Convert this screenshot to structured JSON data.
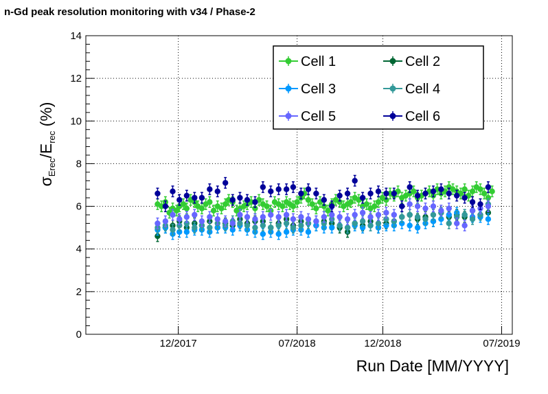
{
  "chart_data": {
    "type": "scatter",
    "title": "n-Gd peak resolution monitoring with v34 / Phase-2",
    "xlabel": "Run Date [MM/YYYY]",
    "ylabel": {
      "sym": "σ",
      "sub1": "Erec",
      "mid": "/E",
      "sub2": "rec",
      "tail": " (%)"
    },
    "x_range": [
      "2017-06-19",
      "2019-07-20"
    ],
    "ylim": [
      0,
      14
    ],
    "y_ticks": [
      0,
      2,
      4,
      6,
      8,
      10,
      12,
      14
    ],
    "x_ticks": [
      {
        "date": "2017-12-01",
        "label": "12/2017"
      },
      {
        "date": "2018-07-01",
        "label": "07/2018"
      },
      {
        "date": "2018-12-01",
        "label": "12/2018"
      },
      {
        "date": "2019-07-01",
        "label": "07/2019"
      }
    ],
    "grid": true,
    "error_bar": 0.25,
    "legend_position": "top-right",
    "series": [
      {
        "name": "Cell 1",
        "color": "#33cc33",
        "x": [
          "2017-10-25",
          "2017-11-01",
          "2017-11-08",
          "2017-11-15",
          "2017-11-21",
          "2017-11-28",
          "2017-12-03",
          "2017-12-10",
          "2017-12-16",
          "2017-12-23",
          "2017-12-30",
          "2018-01-05",
          "2018-01-12",
          "2018-01-19",
          "2018-01-26",
          "2018-02-02",
          "2018-02-09",
          "2018-02-16",
          "2018-02-23",
          "2018-03-01",
          "2018-03-08",
          "2018-03-15",
          "2018-03-21",
          "2018-03-28",
          "2018-04-03",
          "2018-04-10",
          "2018-04-17",
          "2018-04-24",
          "2018-05-01",
          "2018-05-08",
          "2018-05-15",
          "2018-05-22",
          "2018-05-29",
          "2018-06-05",
          "2018-06-12",
          "2018-06-18",
          "2018-06-24",
          "2018-07-01",
          "2018-07-08",
          "2018-07-14",
          "2018-07-21",
          "2018-07-28",
          "2018-08-04",
          "2018-08-11",
          "2018-08-18",
          "2018-08-25",
          "2018-09-01",
          "2018-09-08",
          "2018-09-15",
          "2018-09-22",
          "2018-09-29",
          "2018-10-05",
          "2018-10-12",
          "2018-10-19",
          "2018-10-26",
          "2018-11-02",
          "2018-11-09",
          "2018-11-16",
          "2018-11-23",
          "2018-11-30",
          "2018-12-07",
          "2018-12-14",
          "2018-12-21",
          "2018-12-28",
          "2019-01-04",
          "2019-01-11",
          "2019-01-18",
          "2019-01-25",
          "2019-02-01",
          "2019-02-08",
          "2019-02-15",
          "2019-02-22",
          "2019-03-01",
          "2019-03-08",
          "2019-03-15",
          "2019-03-22",
          "2019-03-29",
          "2019-04-05",
          "2019-04-12",
          "2019-04-19",
          "2019-04-26",
          "2019-05-03",
          "2019-05-10",
          "2019-05-17",
          "2019-05-24",
          "2019-05-31",
          "2019-06-07",
          "2019-06-14"
        ],
        "y": [
          6.1,
          6.0,
          6.2,
          5.7,
          5.9,
          5.8,
          6.0,
          6.1,
          5.9,
          6.3,
          6.2,
          6.0,
          5.9,
          6.1,
          6.2,
          5.8,
          6.0,
          5.9,
          6.1,
          6.3,
          6.2,
          5.8,
          5.9,
          6.0,
          6.1,
          6.2,
          5.9,
          6.3,
          6.1,
          6.0,
          5.8,
          6.2,
          6.1,
          6.0,
          6.2,
          6.1,
          6.0,
          6.2,
          6.4,
          6.6,
          6.3,
          6.1,
          5.9,
          6.2,
          6.0,
          5.8,
          6.1,
          6.3,
          6.2,
          6.0,
          6.1,
          6.2,
          6.4,
          6.3,
          6.0,
          6.1,
          5.9,
          6.0,
          6.2,
          6.4,
          6.3,
          6.6,
          6.5,
          6.7,
          6.4,
          6.5,
          6.6,
          6.7,
          6.4,
          6.5,
          6.6,
          6.7,
          6.5,
          6.8,
          6.6,
          6.7,
          6.9,
          6.8,
          6.7,
          6.6,
          6.8,
          6.5,
          6.7,
          6.9,
          6.8,
          6.6,
          6.4,
          6.7
        ]
      },
      {
        "name": "Cell 2",
        "color": "#006633",
        "x": [
          "2017-10-25",
          "2017-11-08",
          "2017-11-21",
          "2017-12-03",
          "2017-12-16",
          "2017-12-30",
          "2018-01-12",
          "2018-01-26",
          "2018-02-09",
          "2018-02-23",
          "2018-03-08",
          "2018-03-21",
          "2018-04-03",
          "2018-04-17",
          "2018-05-01",
          "2018-05-15",
          "2018-05-29",
          "2018-06-12",
          "2018-06-24",
          "2018-07-08",
          "2018-07-21",
          "2018-08-04",
          "2018-08-18",
          "2018-09-01",
          "2018-09-15",
          "2018-09-29",
          "2018-10-12",
          "2018-10-26",
          "2018-11-09",
          "2018-11-23",
          "2018-12-07",
          "2018-12-21",
          "2019-01-04",
          "2019-01-18",
          "2019-02-01",
          "2019-02-15",
          "2019-03-01",
          "2019-03-15",
          "2019-03-29",
          "2019-04-12",
          "2019-04-26",
          "2019-05-10",
          "2019-05-24",
          "2019-06-07"
        ],
        "y": [
          4.6,
          5.0,
          5.1,
          5.3,
          5.0,
          5.2,
          5.1,
          5.3,
          5.0,
          5.2,
          5.1,
          5.4,
          5.2,
          5.3,
          5.3,
          5.0,
          5.2,
          5.4,
          5.1,
          5.3,
          5.2,
          5.1,
          5.3,
          5.2,
          5.0,
          4.8,
          5.2,
          5.1,
          5.3,
          5.0,
          5.2,
          5.3,
          5.5,
          5.6,
          5.4,
          5.5,
          5.3,
          5.7,
          5.5,
          5.6,
          5.5,
          5.8,
          5.6,
          5.7
        ]
      },
      {
        "name": "Cell 3",
        "color": "#0099ff",
        "x": [
          "2017-10-25",
          "2017-11-08",
          "2017-11-21",
          "2017-12-03",
          "2017-12-16",
          "2017-12-30",
          "2018-01-12",
          "2018-01-26",
          "2018-02-09",
          "2018-02-23",
          "2018-03-08",
          "2018-03-21",
          "2018-04-03",
          "2018-04-17",
          "2018-05-01",
          "2018-05-15",
          "2018-05-29",
          "2018-06-12",
          "2018-06-24",
          "2018-07-08",
          "2018-07-21",
          "2018-08-04",
          "2018-08-18",
          "2018-09-01",
          "2018-09-15",
          "2018-09-29",
          "2018-10-12",
          "2018-10-26",
          "2018-11-09",
          "2018-11-23",
          "2018-12-07",
          "2018-12-21",
          "2019-01-04",
          "2019-01-18",
          "2019-02-01",
          "2019-02-15",
          "2019-03-01",
          "2019-03-15",
          "2019-03-29",
          "2019-04-12",
          "2019-04-26",
          "2019-05-10",
          "2019-05-24",
          "2019-06-07"
        ],
        "y": [
          4.9,
          5.0,
          4.7,
          4.8,
          4.8,
          4.9,
          4.9,
          4.8,
          5.0,
          5.0,
          4.9,
          5.1,
          4.9,
          4.8,
          4.7,
          4.8,
          4.7,
          4.8,
          4.9,
          4.9,
          4.8,
          5.1,
          5.0,
          5.0,
          5.1,
          5.0,
          5.1,
          5.0,
          5.1,
          5.0,
          5.1,
          5.1,
          5.2,
          5.1,
          5.0,
          5.2,
          5.3,
          5.4,
          5.6,
          5.7,
          5.6,
          5.5,
          5.5,
          5.4
        ]
      },
      {
        "name": "Cell 4",
        "color": "#339999",
        "x": [
          "2017-10-25",
          "2017-11-08",
          "2017-11-21",
          "2017-12-03",
          "2017-12-16",
          "2017-12-30",
          "2018-01-12",
          "2018-01-26",
          "2018-02-09",
          "2018-02-23",
          "2018-03-08",
          "2018-03-21",
          "2018-04-03",
          "2018-04-17",
          "2018-05-01",
          "2018-05-15",
          "2018-05-29",
          "2018-06-12",
          "2018-06-24",
          "2018-07-08",
          "2018-07-21",
          "2018-08-04",
          "2018-08-18",
          "2018-09-01",
          "2018-09-15",
          "2018-09-29",
          "2018-10-12",
          "2018-10-26",
          "2018-11-09",
          "2018-11-23",
          "2018-12-07",
          "2018-12-21",
          "2019-01-04",
          "2019-01-18",
          "2019-02-01",
          "2019-02-15",
          "2019-03-01",
          "2019-03-15",
          "2019-03-29",
          "2019-04-12",
          "2019-04-26",
          "2019-05-10",
          "2019-05-24",
          "2019-06-07"
        ],
        "y": [
          5.0,
          5.1,
          4.9,
          5.1,
          5.2,
          5.0,
          5.1,
          5.0,
          5.2,
          5.1,
          5.3,
          5.2,
          5.1,
          5.0,
          5.1,
          5.0,
          5.1,
          5.2,
          5.0,
          5.1,
          5.2,
          5.3,
          5.2,
          5.4,
          5.1,
          5.0,
          5.2,
          5.3,
          5.1,
          5.2,
          5.4,
          5.3,
          5.5,
          5.6,
          5.5,
          5.4,
          5.6,
          5.7,
          5.2,
          5.5,
          5.6,
          5.4,
          5.6,
          6.1
        ]
      },
      {
        "name": "Cell 5",
        "color": "#6666ff",
        "x": [
          "2017-10-25",
          "2017-11-08",
          "2017-11-21",
          "2017-12-03",
          "2017-12-16",
          "2017-12-30",
          "2018-01-12",
          "2018-01-26",
          "2018-02-09",
          "2018-02-23",
          "2018-03-08",
          "2018-03-21",
          "2018-04-03",
          "2018-04-17",
          "2018-05-01",
          "2018-05-15",
          "2018-05-29",
          "2018-06-12",
          "2018-06-24",
          "2018-07-08",
          "2018-07-21",
          "2018-08-04",
          "2018-08-18",
          "2018-09-01",
          "2018-09-15",
          "2018-09-29",
          "2018-10-12",
          "2018-10-26",
          "2018-11-09",
          "2018-11-23",
          "2018-12-07",
          "2018-12-21",
          "2019-01-04",
          "2019-01-18",
          "2019-02-01",
          "2019-02-15",
          "2019-03-01",
          "2019-03-15",
          "2019-03-29",
          "2019-04-12",
          "2019-04-26",
          "2019-05-10",
          "2019-05-24",
          "2019-06-07"
        ],
        "y": [
          5.2,
          5.3,
          5.6,
          5.4,
          5.5,
          5.6,
          5.3,
          5.5,
          5.4,
          5.3,
          5.2,
          5.6,
          5.5,
          5.4,
          5.5,
          5.6,
          5.5,
          5.6,
          5.4,
          5.5,
          5.4,
          5.3,
          5.5,
          5.6,
          5.5,
          5.4,
          5.6,
          5.7,
          5.5,
          5.6,
          5.7,
          5.6,
          6.0,
          6.1,
          6.0,
          5.9,
          6.0,
          5.8,
          5.9,
          5.2,
          5.1,
          5.8,
          5.9,
          6.0
        ]
      },
      {
        "name": "Cell 6",
        "color": "#000099",
        "x": [
          "2017-10-25",
          "2017-11-08",
          "2017-11-21",
          "2017-12-03",
          "2017-12-16",
          "2017-12-30",
          "2018-01-12",
          "2018-01-26",
          "2018-02-09",
          "2018-02-23",
          "2018-03-08",
          "2018-03-21",
          "2018-04-03",
          "2018-04-17",
          "2018-05-01",
          "2018-05-15",
          "2018-05-29",
          "2018-06-12",
          "2018-06-24",
          "2018-07-08",
          "2018-07-21",
          "2018-08-04",
          "2018-08-18",
          "2018-09-01",
          "2018-09-15",
          "2018-09-29",
          "2018-10-12",
          "2018-10-26",
          "2018-11-09",
          "2018-11-23",
          "2018-12-07",
          "2018-12-21",
          "2019-01-04",
          "2019-01-18",
          "2019-02-01",
          "2019-02-15",
          "2019-03-01",
          "2019-03-15",
          "2019-03-29",
          "2019-04-12",
          "2019-04-26",
          "2019-05-10",
          "2019-05-24",
          "2019-06-07"
        ],
        "y": [
          6.6,
          6.0,
          6.7,
          6.3,
          6.5,
          6.4,
          6.4,
          6.8,
          6.7,
          7.1,
          6.3,
          6.4,
          6.3,
          6.2,
          6.9,
          6.7,
          6.8,
          6.8,
          6.9,
          6.6,
          6.8,
          6.6,
          6.3,
          6.0,
          6.5,
          6.6,
          7.2,
          6.4,
          6.6,
          6.7,
          6.6,
          6.6,
          6.0,
          6.9,
          6.5,
          6.6,
          6.7,
          6.8,
          6.6,
          6.5,
          6.4,
          6.2,
          6.1,
          6.9
        ]
      }
    ]
  }
}
